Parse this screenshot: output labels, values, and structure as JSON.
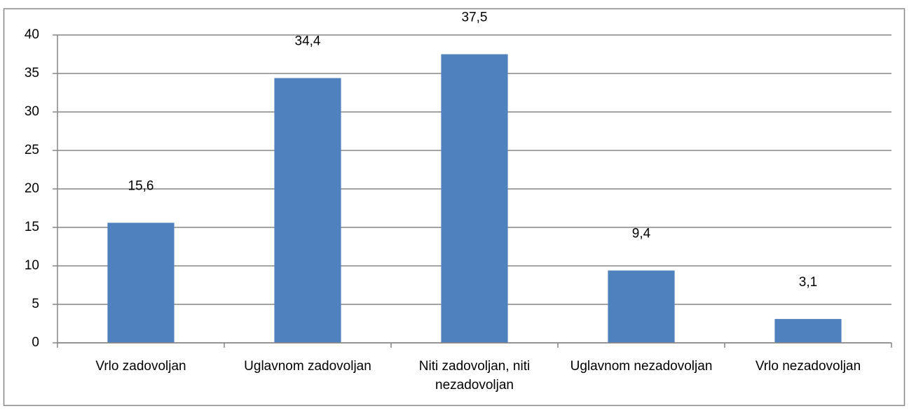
{
  "chart_data": {
    "type": "bar",
    "categories": [
      "Vrlo zadovoljan",
      "Uglavnom zadovoljan",
      "Niti zadovoljan, niti nezadovoljan",
      "Uglavnom nezadovoljan",
      "Vrlo nezadovoljan"
    ],
    "values": [
      15.6,
      34.4,
      37.5,
      9.4,
      3.1
    ],
    "value_labels": [
      "15,6",
      "34,4",
      "37,5",
      "9,4",
      "3,1"
    ],
    "color": "#4f81bd",
    "ylim": [
      0,
      40
    ],
    "yticks": [
      0,
      5,
      10,
      15,
      20,
      25,
      30,
      35,
      40
    ],
    "grid": true
  }
}
